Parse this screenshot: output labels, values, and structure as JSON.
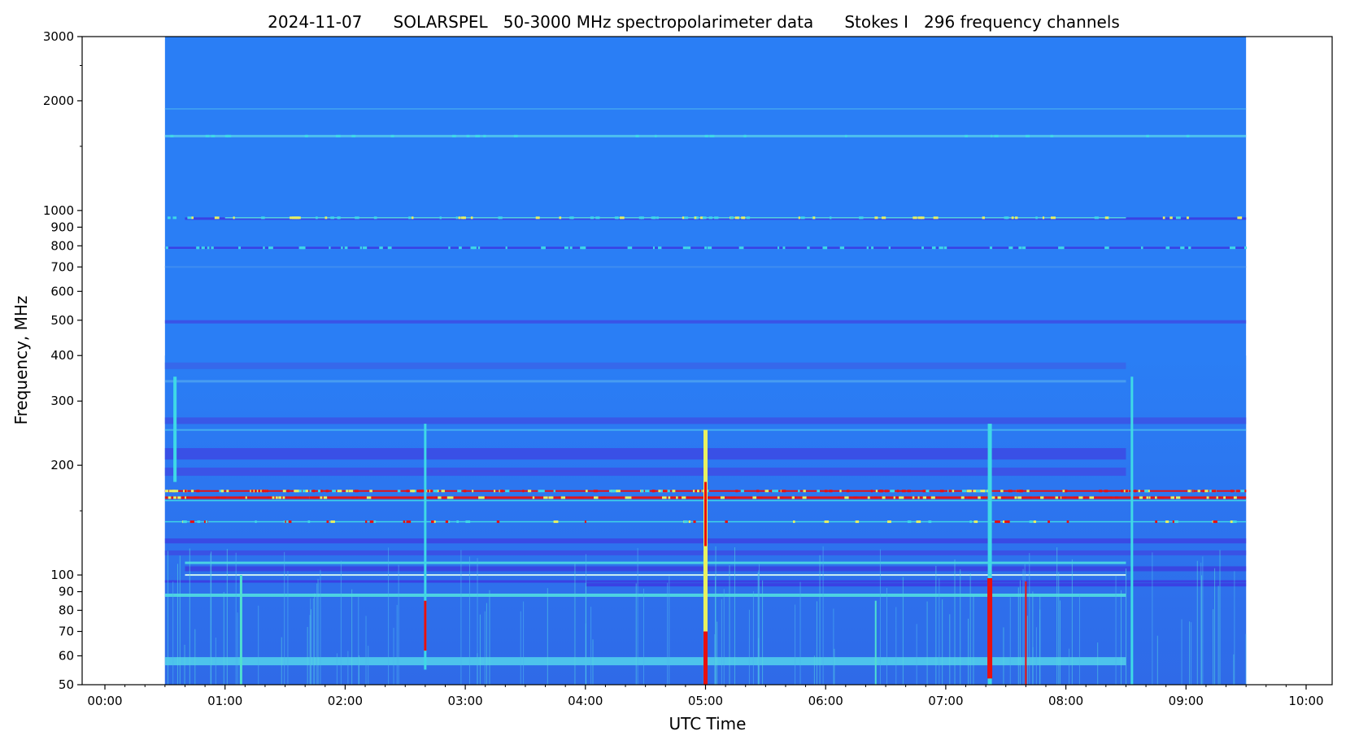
{
  "chart_data": {
    "type": "heatmap",
    "title": "2024-11-07      SOLARSPEL   50-3000 MHz spectropolarimeter data      Stokes I   296 frequency channels",
    "xlabel": "UTC Time",
    "ylabel": "Frequency, MHz",
    "x_scale": "time",
    "y_scale": "log",
    "xlim": [
      "00:00",
      "10:00"
    ],
    "ylim": [
      50,
      3000
    ],
    "x_ticks": [
      "00:00",
      "01:00",
      "02:00",
      "03:00",
      "04:00",
      "05:00",
      "06:00",
      "07:00",
      "08:00",
      "09:00",
      "10:00"
    ],
    "y_ticks": [
      {
        "value": 3000,
        "label": "3000"
      },
      {
        "value": 2000,
        "label": "2000"
      },
      {
        "value": 1000,
        "label": "1000"
      },
      {
        "value": 900,
        "label": "900"
      },
      {
        "value": 800,
        "label": "800"
      },
      {
        "value": 700,
        "label": "700"
      },
      {
        "value": 600,
        "label": "600"
      },
      {
        "value": 500,
        "label": "500"
      },
      {
        "value": 400,
        "label": "400"
      },
      {
        "value": 300,
        "label": "300"
      },
      {
        "value": 200,
        "label": "200"
      },
      {
        "value": 100,
        "label": "100"
      },
      {
        "value": 90,
        "label": "90"
      },
      {
        "value": 80,
        "label": "80"
      },
      {
        "value": 70,
        "label": "70"
      },
      {
        "value": 60,
        "label": "60"
      },
      {
        "value": 50,
        "label": "50"
      }
    ],
    "y_minor_ticks": [
      150,
      1500,
      2500
    ],
    "data_time_range": [
      "00:30",
      "09:30"
    ],
    "colormap": "jet",
    "colors": {
      "background": "#2a7ef5",
      "quiet_low_freq": "#2f6ae8",
      "dark_band": "#3b4ae6",
      "cyan_highlight": "#3fd9e6",
      "yellow": "#e8f060",
      "red": "#e81010"
    },
    "horizontal_bands": [
      {
        "freq": 1900,
        "t0": "00:30",
        "t1": "09:30",
        "color": "#45a6f0",
        "thickness": 1.5
      },
      {
        "freq": 1600,
        "t0": "00:30",
        "t1": "09:30",
        "color": "#4fc4ee",
        "thickness": 3
      },
      {
        "freq": 950,
        "t0": "00:40",
        "t1": "09:30",
        "color": "#3a3ee3",
        "thickness": 3
      },
      {
        "freq": 955,
        "t0": "01:00",
        "t1": "08:30",
        "color": "#55e0df",
        "thickness": 1.5
      },
      {
        "freq": 790,
        "t0": "00:30",
        "t1": "09:30",
        "color": "#3a3ee3",
        "thickness": 2.5
      },
      {
        "freq": 700,
        "t0": "00:30",
        "t1": "09:30",
        "color": "#3f8df0",
        "thickness": 2
      },
      {
        "freq": 495,
        "t0": "00:30",
        "t1": "09:30",
        "color": "#3a52e6",
        "thickness": 4
      },
      {
        "freq": 375,
        "t0": "00:30",
        "t1": "08:30",
        "color": "#3767ea",
        "thickness": 8
      },
      {
        "freq": 340,
        "t0": "00:30",
        "t1": "08:30",
        "color": "#4a9ef0",
        "thickness": 3
      },
      {
        "freq": 265,
        "t0": "00:30",
        "t1": "09:30",
        "color": "#3a56e6",
        "thickness": 8
      },
      {
        "freq": 250,
        "t0": "00:30",
        "t1": "09:30",
        "color": "#45b0ee",
        "thickness": 2
      },
      {
        "freq": 215,
        "t0": "00:30",
        "t1": "08:30",
        "color": "#3a4ee5",
        "thickness": 14
      },
      {
        "freq": 192,
        "t0": "00:30",
        "t1": "08:30",
        "color": "#3c52e6",
        "thickness": 10
      },
      {
        "freq": 170,
        "t0": "00:30",
        "t1": "09:30",
        "color": "#e81010",
        "thickness": 2
      },
      {
        "freq": 163,
        "t0": "00:30",
        "t1": "09:30",
        "color": "#e81010",
        "thickness": 3
      },
      {
        "freq": 160,
        "t0": "00:30",
        "t1": "09:30",
        "color": "#3fd9e6",
        "thickness": 1.5
      },
      {
        "freq": 140,
        "t0": "00:30",
        "t1": "09:30",
        "color": "#3fd9e6",
        "thickness": 1.5
      },
      {
        "freq": 124,
        "t0": "00:30",
        "t1": "09:30",
        "color": "#3a48e3",
        "thickness": 6
      },
      {
        "freq": 115,
        "t0": "00:30",
        "t1": "09:30",
        "color": "#3a50e5",
        "thickness": 6
      },
      {
        "freq": 108,
        "t0": "00:40",
        "t1": "08:30",
        "color": "#4cd6e4",
        "thickness": 3
      },
      {
        "freq": 104,
        "t0": "00:40",
        "t1": "09:30",
        "color": "#3a45e2",
        "thickness": 6
      },
      {
        "freq": 100,
        "t0": "00:40",
        "t1": "08:30",
        "color": "#d5f5f0",
        "thickness": 2
      },
      {
        "freq": 96,
        "t0": "00:30",
        "t1": "09:30",
        "color": "#3a3ee3",
        "thickness": 3
      },
      {
        "freq": 94,
        "t0": "04:00",
        "t1": "09:30",
        "color": "#3a3ee3",
        "thickness": 4
      },
      {
        "freq": 88,
        "t0": "00:30",
        "t1": "08:30",
        "color": "#4fd8e2",
        "thickness": 4
      },
      {
        "freq": 58,
        "t0": "00:30",
        "t1": "08:30",
        "color": "#4fc8ec",
        "thickness": 10
      }
    ],
    "vertical_bursts": [
      {
        "time": "00:35",
        "f_low": 180,
        "f_high": 350,
        "color": "#3fd9e6",
        "width": 4
      },
      {
        "time": "01:08",
        "f_low": 50,
        "f_high": 100,
        "color": "#4fe0d0",
        "width": 3
      },
      {
        "time": "02:40",
        "f_low": 55,
        "f_high": 260,
        "color": "#3fd9e6",
        "width": 3
      },
      {
        "time": "02:40",
        "f_low": 62,
        "f_high": 85,
        "color": "#e81010",
        "width": 3
      },
      {
        "time": "05:00",
        "f_low": 50,
        "f_high": 250,
        "color": "#e8f060",
        "width": 5
      },
      {
        "time": "05:00",
        "f_low": 50,
        "f_high": 70,
        "color": "#e81010",
        "width": 5
      },
      {
        "time": "05:00",
        "f_low": 120,
        "f_high": 180,
        "color": "#e81010",
        "width": 3
      },
      {
        "time": "06:25",
        "f_low": 50,
        "f_high": 85,
        "color": "#4fe0d0",
        "width": 2
      },
      {
        "time": "07:22",
        "f_low": 50,
        "f_high": 260,
        "color": "#3fd9e6",
        "width": 5
      },
      {
        "time": "07:22",
        "f_low": 52,
        "f_high": 98,
        "color": "#e81010",
        "width": 6
      },
      {
        "time": "07:40",
        "f_low": 50,
        "f_high": 96,
        "color": "#e81010",
        "width": 2
      },
      {
        "time": "08:33",
        "f_low": 50,
        "f_high": 350,
        "color": "#3fd9e6",
        "width": 3
      }
    ]
  }
}
